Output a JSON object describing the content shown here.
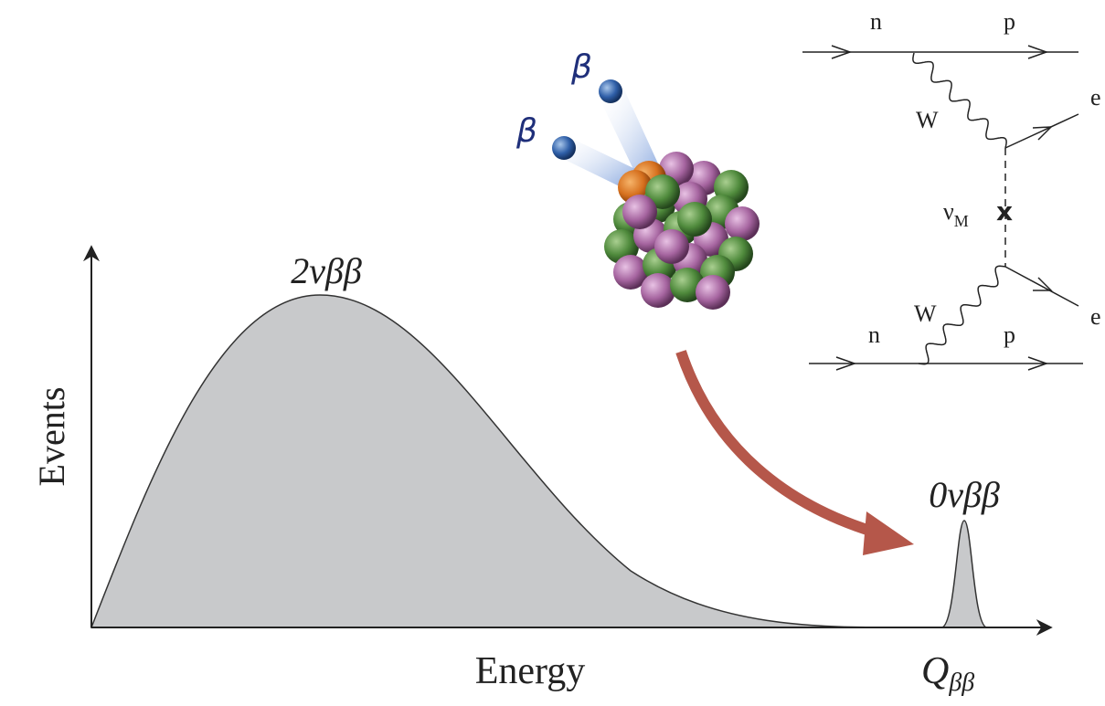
{
  "axes": {
    "y_label": "Events",
    "x_label": "Energy"
  },
  "spectrum": {
    "two_neutrino_label": "2νββ",
    "zero_neutrino_label": "0νββ",
    "q_value": {
      "symbol": "Q",
      "subscript": "ββ"
    }
  },
  "decay": {
    "betas": [
      "β",
      "β"
    ]
  },
  "feynman": {
    "top": {
      "in": "n",
      "out": "p",
      "boson": "W",
      "lepton": "e"
    },
    "bottom": {
      "in": "n",
      "out": "p",
      "boson": "W",
      "lepton": "e"
    },
    "neutrino": {
      "symbol": "ν",
      "subscript": "M"
    },
    "vertex_mark": "x"
  }
}
